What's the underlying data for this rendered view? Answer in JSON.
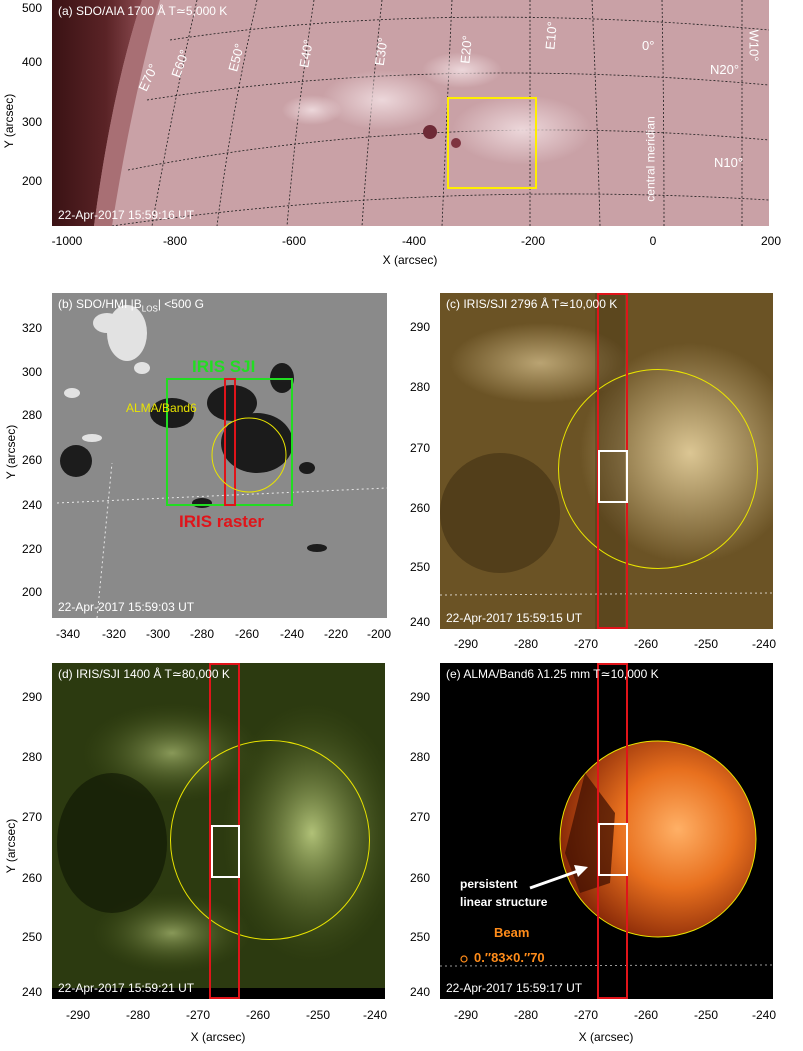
{
  "panel_a": {
    "title": "(a) SDO/AIA 1700 Å T≃5,000 K",
    "timestamp": "22-Apr-2017 15:59:16 UT",
    "grid_labels": [
      "E70°",
      "E60°",
      "E50°",
      "E40°",
      "E30°",
      "E20°",
      "E10°",
      "0°",
      "W10°",
      "N20°",
      "N10°"
    ],
    "meridian_label": "central meridian",
    "ylabel": "Y (arcsec)",
    "xlabel": "X (arcsec)",
    "yticks": [
      "500",
      "400",
      "300",
      "200"
    ],
    "xticks": [
      "-1000",
      "-800",
      "-600",
      "-400",
      "-200",
      "0",
      "200"
    ]
  },
  "panel_b": {
    "title": "(b) SDO/HMI |B",
    "title_sub": "LOS",
    "title_end": "| <500 G",
    "timestamp": "22-Apr-2017 15:59:03 UT",
    "label_sji": "IRIS SJI",
    "label_raster": "IRIS raster",
    "label_alma": "ALMA/Band6",
    "ylabel": "Y (arcsec)",
    "yticks": [
      "320",
      "300",
      "280",
      "260",
      "240",
      "220",
      "200"
    ],
    "xticks": [
      "-340",
      "-320",
      "-300",
      "-280",
      "-260",
      "-240",
      "-220",
      "-200"
    ]
  },
  "panel_c": {
    "title": "(c) IRIS/SJI 2796 Å T≃10,000 K",
    "timestamp": "22-Apr-2017 15:59:15 UT",
    "yticks": [
      "290",
      "280",
      "270",
      "260",
      "250",
      "240"
    ],
    "xticks": [
      "-290",
      "-280",
      "-270",
      "-260",
      "-250",
      "-240"
    ]
  },
  "panel_d": {
    "title": "(d) IRIS/SJI 1400 Å T≃80,000 K",
    "timestamp": "22-Apr-2017 15:59:21 UT",
    "ylabel": "Y (arcsec)",
    "xlabel": "X (arcsec)",
    "yticks": [
      "290",
      "280",
      "270",
      "260",
      "250",
      "240"
    ],
    "xticks": [
      "-290",
      "-280",
      "-270",
      "-260",
      "-250",
      "-240"
    ]
  },
  "panel_e": {
    "title": "(e) ALMA/Band6 λ1.25 mm T≃10,000 K",
    "timestamp": "22-Apr-2017 15:59:17 UT",
    "annotation_line1": "persistent",
    "annotation_line2": "linear structure",
    "beam_label": "Beam",
    "beam_size": "0.″83×0.″70",
    "xlabel": "X (arcsec)",
    "yticks": [
      "290",
      "280",
      "270",
      "260",
      "250",
      "240"
    ],
    "xticks": [
      "-290",
      "-280",
      "-270",
      "-260",
      "-250",
      "-240"
    ]
  },
  "colors": {
    "raster": "#e0141a",
    "sji_box": "#22dd22",
    "alma_circle": "#e9e400",
    "aia_box": "#ffee00",
    "beam": "#ff8c1a"
  }
}
